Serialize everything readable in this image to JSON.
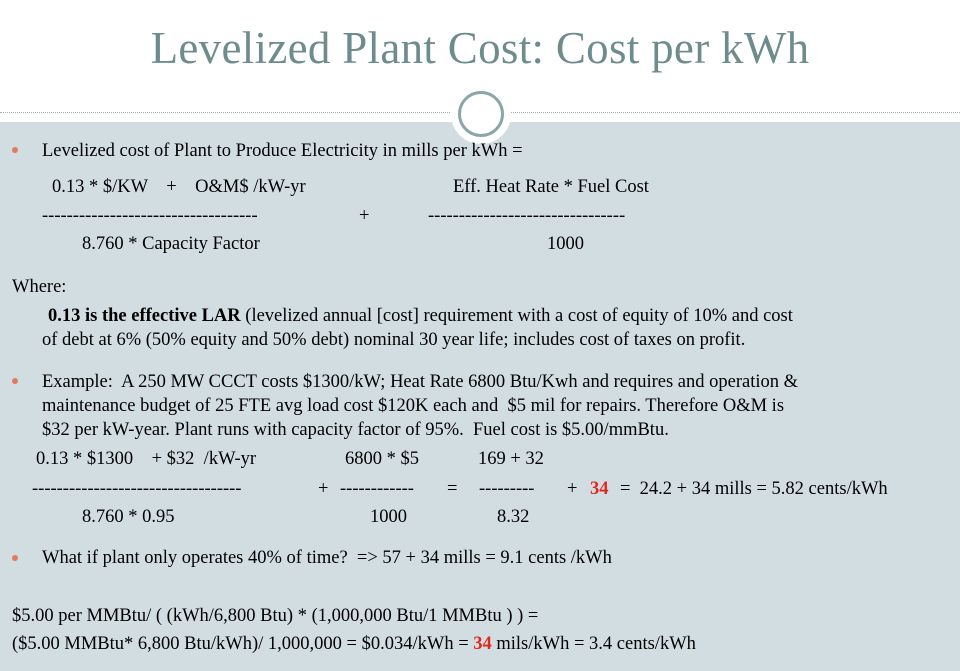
{
  "title": "Levelized Plant Cost: Cost per kWh",
  "bullet1": "Levelized cost of Plant to Produce Electricity in mills per kWh =",
  "formula": {
    "num_left": "0.13 * $/KW    +    O&M$ /kW-yr",
    "num_right": "Eff. Heat Rate * Fuel Cost",
    "dash_left": "-----------------------------------",
    "plus": "+",
    "dash_right": "--------------------------------",
    "den_left": "8.760 * Capacity Factor",
    "den_right": "1000"
  },
  "where_label": "Where:",
  "where": {
    "bold": "0.13 is the effective LAR",
    "line1_rest": " (levelized annual [cost] requirement with a cost of equity of 10% and cost",
    "line2": "of debt at 6% (50% equity and 50% debt) nominal 30 year life; includes cost of taxes on profit."
  },
  "example": {
    "line1": "Example:  A 250 MW CCCT costs $1300/kW; Heat Rate 6800 Btu/Kwh and requires and operation &",
    "line2": "maintenance budget of 25 FTE avg load cost $120K each and  $5 mil for repairs. Therefore O&M is",
    "line3": "$32 per kW-year. Plant runs with capacity factor of 95%.  Fuel cost is $5.00/mmBtu."
  },
  "calc": {
    "num1": "0.13 * $1300    + $32  /kW-yr",
    "num2": "6800 * $5",
    "num3": "169 + 32",
    "dash1": "----------------------------------",
    "plus1": "+",
    "dash2": "------------",
    "eq1": "=",
    "dash3": "---------",
    "plus2": "+",
    "red_value": "34",
    "result": "=  24.2 + 34 mills = 5.82 cents/kWh",
    "den1": "8.760 * 0.95",
    "den2": "1000",
    "den3": "8.32"
  },
  "bullet3": "What if plant only operates 40% of time?  => 57 + 34 mills = 9.1 cents /kWh",
  "footer": {
    "line1": "$5.00 per MMBtu/ ( (kWh/6,800 Btu) * (1,000,000 Btu/1 MMBtu ) ) =",
    "line2_a": "($5.00 MMBtu* 6,800 Btu/kWh)/ 1,000,000 = $0.034/kWh = ",
    "line2_red": "34",
    "line2_b": " mils/kWh = 3.4 cents/kWh"
  },
  "colors": {
    "title": "#6f8c8d",
    "panel": "#d2dde2",
    "bullet": "#e07b5f",
    "highlight": "#e0281e"
  }
}
